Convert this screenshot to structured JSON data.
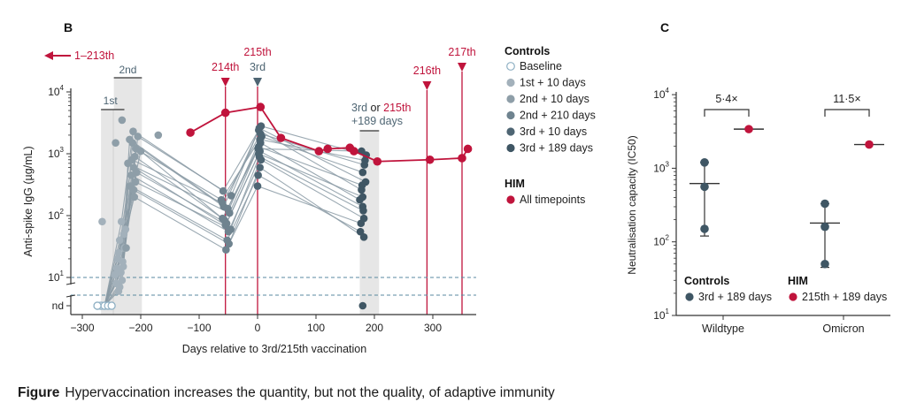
{
  "colors": {
    "him": "#c0143c",
    "axis": "#333333",
    "dashed": "#5a8aa0",
    "shade": "#e6e6e6",
    "shade_dark": "#d2d2d2",
    "baseline": "#8fb0c4",
    "c1st": "#a3b1bb",
    "c2nd10": "#8e9ea8",
    "c2nd210": "#6f838f",
    "c3rd10": "#4e6573",
    "c3rd189": "#3f5664",
    "line": "#8a9aa5"
  },
  "panel_b": {
    "letter": "B",
    "arrow_label": "1–213th",
    "band_labels": {
      "first": "1st",
      "second": "2nd"
    },
    "third_or_215th": {
      "prefix": "3rd",
      "or": "or",
      "him": "215th",
      "suffix": "+189 days"
    },
    "event_labels": [
      {
        "label": "214th",
        "x": -55,
        "color": "him"
      },
      {
        "label": "215th",
        "x": 0,
        "color": "him",
        "sub": "3rd"
      },
      {
        "label": "216th",
        "x": 290,
        "color": "him"
      },
      {
        "label": "217th",
        "x": 350,
        "color": "him"
      }
    ]
  },
  "legend_b": {
    "controls_title": "Controls",
    "items": [
      {
        "label": "Baseline",
        "key": "baseline",
        "hollow": true
      },
      {
        "label": "1st + 10 days",
        "key": "c1st"
      },
      {
        "label": "2nd + 10 days",
        "key": "c2nd10"
      },
      {
        "label": "2nd + 210 days",
        "key": "c2nd210"
      },
      {
        "label": "3rd + 10 days",
        "key": "c3rd10"
      },
      {
        "label": "3rd + 189 days",
        "key": "c3rd189"
      }
    ],
    "him_title": "HIM",
    "him_item": "All timepoints"
  },
  "panel_c": {
    "letter": "C",
    "fold_changes": [
      "5·4×",
      "11·5×"
    ],
    "legend": {
      "controls_title": "Controls",
      "controls_item": "3rd + 189 days",
      "him_title": "HIM",
      "him_item": "215th + 189 days"
    }
  },
  "caption": {
    "label": "Figure",
    "text": "Hypervaccination increases the quantity, but not the quality, of adaptive immunity"
  },
  "chart_data": [
    {
      "id": "B",
      "type": "line",
      "xlabel": "Days relative to 3rd/215th vaccination",
      "ylabel": "Anti-spike IgG (µg/mL)",
      "xlim": [
        -320,
        380
      ],
      "xticks": [
        -300,
        -200,
        -100,
        0,
        100,
        200,
        300
      ],
      "ylim_log10": [
        0,
        4
      ],
      "yticks": [
        {
          "label": "10",
          "sup": "1",
          "log": 1
        },
        {
          "label": "10",
          "sup": "2",
          "log": 2
        },
        {
          "label": "10",
          "sup": "3",
          "log": 3
        },
        {
          "label": "10",
          "sup": "4",
          "log": 4
        }
      ],
      "nd_label": "nd",
      "scale": "log",
      "grid": false,
      "him_series": {
        "name": "HIM",
        "x": [
          -115,
          -55,
          5,
          40,
          105,
          120,
          158,
          165,
          205,
          295,
          350,
          360
        ],
        "y": [
          2200,
          4600,
          5700,
          1800,
          1100,
          1200,
          1250,
          1100,
          750,
          800,
          850,
          1200
        ]
      },
      "control_series": [
        {
          "x": [
            -262,
            -238,
            -210,
            -60,
            5,
            175
          ],
          "y": [
            5,
            6,
            900,
            90,
            1500,
            180
          ]
        },
        {
          "x": [
            -262,
            -236,
            -212,
            -55,
            4,
            180
          ],
          "y": [
            5,
            7,
            600,
            70,
            1100,
            140
          ]
        },
        {
          "x": [
            -262,
            -234,
            -214,
            -58,
            2,
            178
          ],
          "y": [
            5,
            12,
            1500,
            140,
            2400,
            260
          ]
        },
        {
          "x": [
            -262,
            -232,
            -216,
            -50,
            6,
            182
          ],
          "y": [
            5,
            9,
            450,
            55,
            800,
            90
          ]
        },
        {
          "x": [
            -262,
            -230,
            -205,
            -45,
            3,
            185
          ],
          "y": [
            5,
            15,
            1900,
            210,
            2600,
            350
          ]
        },
        {
          "x": [
            -262,
            -242,
            -218,
            -52,
            1,
            176
          ],
          "y": [
            5,
            8,
            300,
            40,
            450,
            55
          ]
        },
        {
          "x": [
            -262,
            -228,
            -208,
            -62,
            7,
            180
          ],
          "y": [
            5,
            30,
            1200,
            180,
            1900,
            500
          ]
        },
        {
          "x": [
            -262,
            -226,
            -222,
            -48,
            2,
            179
          ],
          "y": [
            5,
            60,
            700,
            110,
            1300,
            310
          ]
        },
        {
          "x": [
            -262,
            -240,
            -200,
            -57,
            4,
            184
          ],
          "y": [
            5,
            20,
            1100,
            85,
            1700,
            780
          ]
        },
        {
          "x": [
            -262,
            -244,
            -211,
            -54,
            0,
            177
          ],
          "y": [
            5,
            11,
            200,
            28,
            300,
            75
          ]
        },
        {
          "x": [
            -262,
            -238,
            -215,
            -60,
            5,
            183
          ],
          "y": [
            5,
            25,
            800,
            160,
            2100,
            660
          ]
        },
        {
          "x": [
            -262,
            -236,
            -209,
            -46,
            3,
            181
          ],
          "y": [
            5,
            40,
            350,
            60,
            900,
            120
          ]
        },
        {
          "x": [
            -262,
            -233,
            -213,
            -59,
            6,
            186
          ],
          "y": [
            5,
            80,
            2300,
            250,
            2800,
            950
          ]
        },
        {
          "x": [
            -262,
            -231,
            -207,
            -53,
            2,
            180
          ],
          "y": [
            5,
            18,
            500,
            75,
            1000,
            200
          ]
        },
        {
          "x": [
            -262,
            -229,
            -219,
            -51,
            1,
            178
          ],
          "y": [
            5,
            50,
            1700,
            130,
            1200,
            1100
          ]
        },
        {
          "x": [
            -262,
            -241,
            -212,
            -49,
            4,
            182
          ],
          "y": [
            5,
            14,
            260,
            35,
            600,
            45
          ]
        }
      ],
      "control_extra_points": [
        {
          "x": -232,
          "y": 3500,
          "key": "c2nd10"
        },
        {
          "x": -170,
          "y": 2000,
          "key": "c2nd10"
        },
        {
          "x": -243,
          "y": 1500,
          "key": "c2nd10"
        },
        {
          "x": -225,
          "y": 30,
          "key": "c2nd10"
        },
        {
          "x": -266,
          "y": 80,
          "key": "c1st"
        },
        {
          "x": 180,
          "y": "nd",
          "key": "c3rd189"
        }
      ]
    },
    {
      "id": "C",
      "type": "scatter",
      "xlabel": "",
      "ylabel": "Neutralisation capacity (IC50)",
      "ylim_log10": [
        1,
        4
      ],
      "yticks": [
        {
          "label": "10",
          "sup": "1",
          "log": 1
        },
        {
          "label": "10",
          "sup": "2",
          "log": 2
        },
        {
          "label": "10",
          "sup": "3",
          "log": 3
        },
        {
          "label": "10",
          "sup": "4",
          "log": 4
        }
      ],
      "categories": [
        "Wildtype",
        "Omicron"
      ],
      "series": [
        {
          "name": "Controls",
          "values": [
            [
              1200,
              560,
              150
            ],
            [
              330,
              160,
              50
            ]
          ],
          "median": [
            620,
            180
          ],
          "iqr": [
            [
              120,
              1200
            ],
            [
              45,
              330
            ]
          ]
        },
        {
          "name": "HIM",
          "values": [
            [
              3400
            ],
            [
              2100
            ]
          ]
        }
      ]
    }
  ]
}
